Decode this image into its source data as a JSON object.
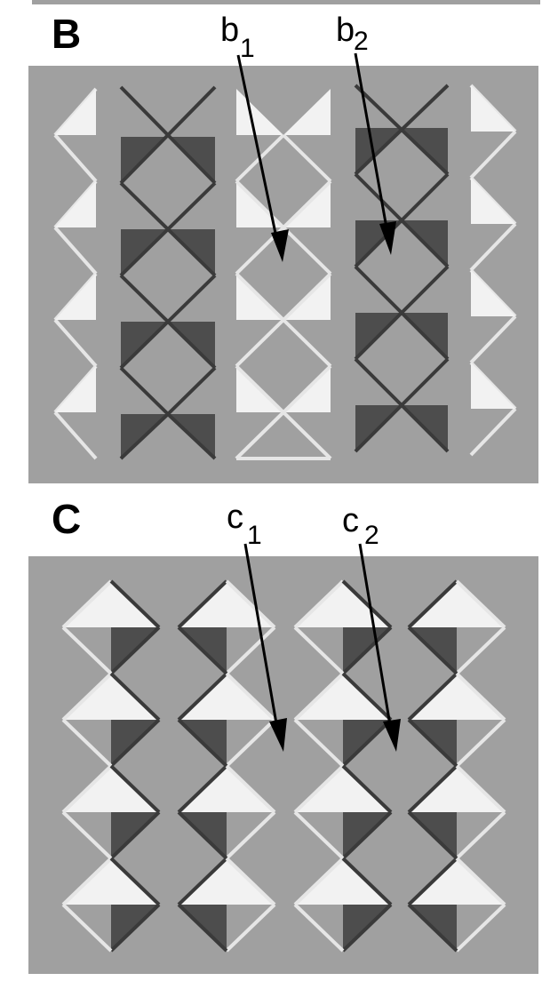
{
  "panels": {
    "B": {
      "letter": "B",
      "annotations": [
        {
          "id": "b1",
          "main": "b",
          "sub": "1"
        },
        {
          "id": "b2",
          "main": "b",
          "sub": "2"
        }
      ]
    },
    "C": {
      "letter": "C",
      "annotations": [
        {
          "id": "c1",
          "main": "c",
          "sub": "1"
        },
        {
          "id": "c2",
          "main": "c",
          "sub": "2"
        }
      ]
    }
  },
  "colors": {
    "background": "#a0a0a0",
    "light": "#f2f2f2",
    "dark": "#4d4d4d",
    "line_light": "#e6e6e6",
    "line_dark": "#3a3a3a",
    "arrow": "#000000"
  }
}
